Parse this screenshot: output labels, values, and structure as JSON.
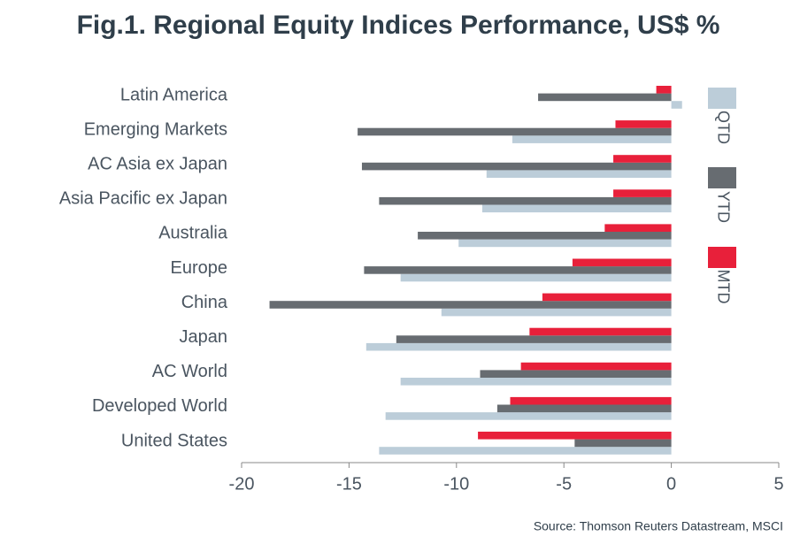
{
  "chart_data": {
    "type": "hbar",
    "title": "Fig.1. Regional Equity Indices Performance, US$ %",
    "source": "Source: Thomson Reuters Datastream, MSCI",
    "categories": [
      "Latin America",
      "Emerging Markets",
      "AC Asia ex Japan",
      "Asia Pacific ex Japan",
      "Australia",
      "Europe",
      "China",
      "Japan",
      "AC World",
      "Developed World",
      "United States"
    ],
    "series": [
      {
        "name": "QTD",
        "color": "#bccdd9",
        "values": [
          0.5,
          -7.4,
          -8.6,
          -8.8,
          -9.9,
          -12.6,
          -10.7,
          -14.2,
          -12.6,
          -13.3,
          -13.6
        ]
      },
      {
        "name": "YTD",
        "color": "#676c71",
        "values": [
          -6.2,
          -14.6,
          -14.4,
          -13.6,
          -11.8,
          -14.3,
          -18.7,
          -12.8,
          -8.9,
          -8.1,
          -4.5
        ]
      },
      {
        "name": "MTD",
        "color": "#e8203a",
        "values": [
          -0.7,
          -2.6,
          -2.7,
          -2.7,
          -3.1,
          -4.6,
          -6.0,
          -6.6,
          -7.0,
          -7.5,
          -9.0
        ]
      }
    ],
    "xlim": [
      -20,
      5
    ],
    "xticks": [
      -20,
      -15,
      -10,
      -5,
      0,
      5
    ],
    "legend_position": "right"
  }
}
